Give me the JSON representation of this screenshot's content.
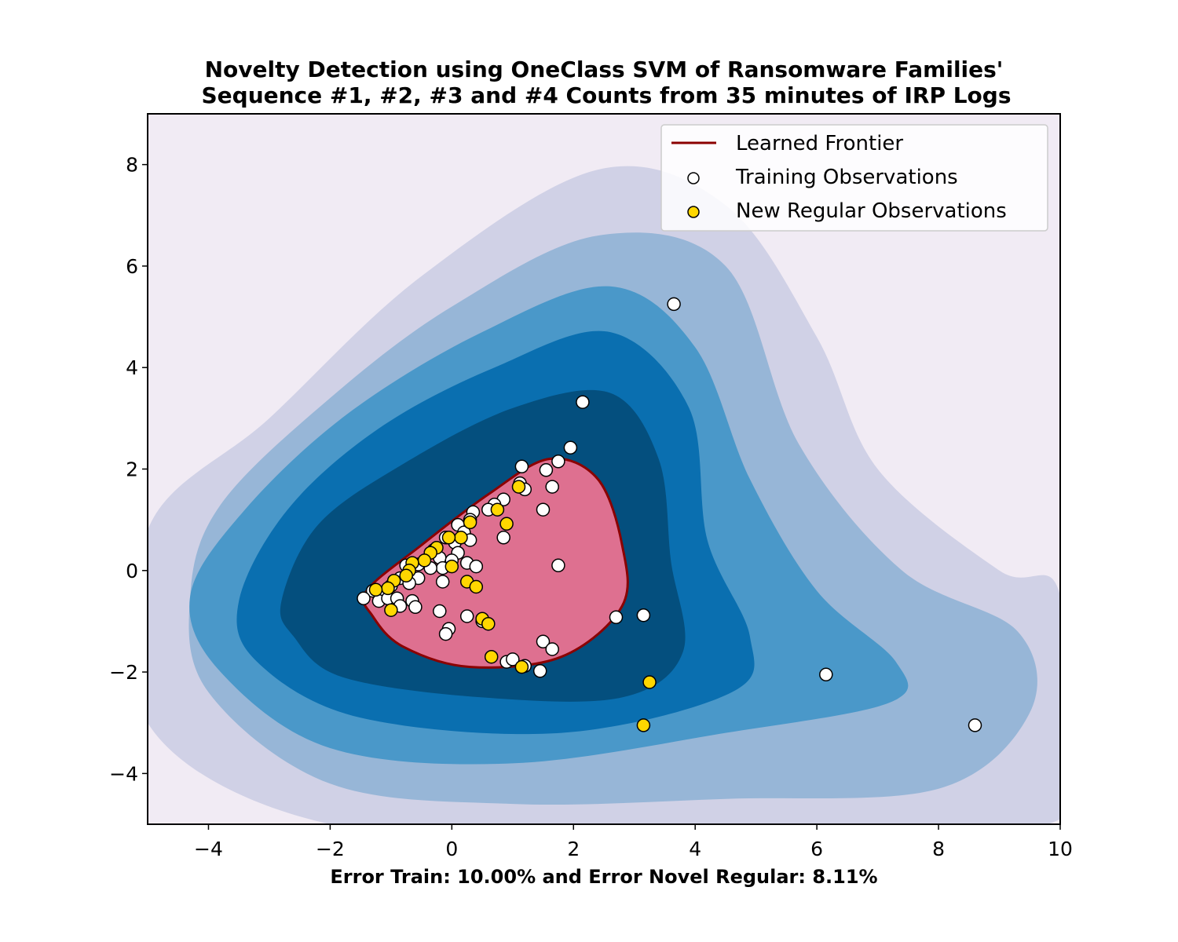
{
  "chart_data": {
    "type": "scatter",
    "title_lines": [
      "Novelty Detection using OneClass SVM of Ransomware Families'",
      "Sequence #1, #2, #3 and #4 Counts from 35 minutes of IRP Logs"
    ],
    "xlabel": "Error Train: 10.00% and Error Novel Regular: 8.11%",
    "ylabel": "",
    "xlim": [
      -5,
      10
    ],
    "ylim": [
      -5,
      9
    ],
    "xticks": [
      -4,
      -2,
      0,
      2,
      4,
      6,
      8,
      10
    ],
    "yticks": [
      -4,
      -2,
      0,
      2,
      4,
      6,
      8
    ],
    "grid": false,
    "legend": {
      "placement": "top-right",
      "entries": [
        {
          "label": "Learned Frontier",
          "kind": "line",
          "color": "#8b0000"
        },
        {
          "label": "Training Observations",
          "kind": "marker",
          "color": "#ffffff"
        },
        {
          "label": "New Regular Observations",
          "kind": "marker",
          "color": "#ffd700"
        }
      ]
    },
    "colors": {
      "background_level": "#f1ebf4",
      "contour_levels": [
        "#d0d1e6",
        "#97b6d7",
        "#4a98c9",
        "#0a6fb0",
        "#044f7e"
      ],
      "frontier_fill": "#de7090",
      "frontier_line": "#8b0000",
      "training_marker": "#ffffff",
      "novel_marker": "#ffd700"
    },
    "decision_function": {
      "center": [
        0.9,
        -0.3
      ],
      "levels": [
        {
          "label": "level-1",
          "points": [
            [
              -5,
              0.8
            ],
            [
              -3,
              3
            ],
            [
              -0.5,
              5.8
            ],
            [
              2.4,
              7.9
            ],
            [
              4.5,
              7.2
            ],
            [
              6,
              4.6
            ],
            [
              7,
              2
            ],
            [
              9,
              0
            ],
            [
              10,
              -0.5
            ],
            [
              10,
              -4.9
            ],
            [
              2.5,
              -5
            ],
            [
              -2,
              -5
            ],
            [
              -5,
              -3
            ]
          ]
        },
        {
          "label": "level-2",
          "points": [
            [
              -4.3,
              -0.5
            ],
            [
              -3.8,
              1.3
            ],
            [
              -2,
              3.4
            ],
            [
              0,
              5.2
            ],
            [
              2.4,
              6.6
            ],
            [
              4.5,
              6
            ],
            [
              5.7,
              2.5
            ],
            [
              7.4,
              0
            ],
            [
              9.3,
              -1.2
            ],
            [
              9.5,
              -2.8
            ],
            [
              8,
              -4.3
            ],
            [
              4.5,
              -4.5
            ],
            [
              1,
              -4.6
            ],
            [
              -2,
              -4.2
            ],
            [
              -4,
              -2.4
            ]
          ]
        },
        {
          "label": "level-3",
          "points": [
            [
              -4.3,
              -0.5
            ],
            [
              -3.4,
              1.2
            ],
            [
              -1.7,
              3.1
            ],
            [
              0.5,
              4.7
            ],
            [
              2.6,
              5.6
            ],
            [
              4,
              4.4
            ],
            [
              4.9,
              1.8
            ],
            [
              6,
              -0.4
            ],
            [
              7.3,
              -1.8
            ],
            [
              7.2,
              -2.6
            ],
            [
              4.5,
              -3.2
            ],
            [
              1,
              -3.8
            ],
            [
              -2,
              -3.5
            ],
            [
              -3.8,
              -2
            ]
          ]
        },
        {
          "label": "level-4",
          "points": [
            [
              -3.5,
              -0.6
            ],
            [
              -2.7,
              1.2
            ],
            [
              -1.2,
              2.8
            ],
            [
              0.7,
              4
            ],
            [
              2.6,
              4.7
            ],
            [
              3.9,
              3.2
            ],
            [
              4.2,
              0.6
            ],
            [
              4.9,
              -1.3
            ],
            [
              4.6,
              -2.4
            ],
            [
              1.8,
              -3.2
            ],
            [
              -1.5,
              -2.9
            ],
            [
              -3.2,
              -1.8
            ]
          ]
        },
        {
          "label": "level-5",
          "points": [
            [
              -2.8,
              -0.6
            ],
            [
              -2.2,
              0.9
            ],
            [
              -0.8,
              2.1
            ],
            [
              1,
              3.2
            ],
            [
              2.6,
              3.5
            ],
            [
              3.4,
              2.2
            ],
            [
              3.6,
              0.2
            ],
            [
              3.8,
              -1.6
            ],
            [
              2.8,
              -2.5
            ],
            [
              0.5,
              -2.5
            ],
            [
              -1.8,
              -2.1
            ],
            [
              -2.6,
              -1.3
            ]
          ]
        }
      ],
      "frontier": [
        [
          -1.4,
          -0.4
        ],
        [
          -0.5,
          0.5
        ],
        [
          0.6,
          1.5
        ],
        [
          1.6,
          2.2
        ],
        [
          2.4,
          1.8
        ],
        [
          2.8,
          0.5
        ],
        [
          2.8,
          -0.7
        ],
        [
          1.8,
          -1.7
        ],
        [
          0.3,
          -1.9
        ],
        [
          -0.8,
          -1.5
        ],
        [
          -1.3,
          -0.9
        ]
      ]
    },
    "series": [
      {
        "name": "Training Observations",
        "points": [
          [
            3.65,
            5.25
          ],
          [
            2.15,
            3.32
          ],
          [
            1.95,
            2.42
          ],
          [
            1.75,
            2.15
          ],
          [
            1.55,
            1.98
          ],
          [
            1.15,
            2.05
          ],
          [
            1.12,
            1.72
          ],
          [
            1.2,
            1.6
          ],
          [
            1.65,
            1.65
          ],
          [
            0.85,
            1.4
          ],
          [
            0.7,
            1.3
          ],
          [
            0.6,
            1.2
          ],
          [
            0.35,
            1.15
          ],
          [
            0.3,
            1.0
          ],
          [
            0.1,
            0.9
          ],
          [
            0.2,
            0.75
          ],
          [
            0.05,
            0.55
          ],
          [
            -0.1,
            0.65
          ],
          [
            -0.3,
            0.4
          ],
          [
            -0.2,
            0.25
          ],
          [
            0.1,
            0.35
          ],
          [
            0.0,
            0.2
          ],
          [
            0.25,
            0.15
          ],
          [
            0.4,
            0.08
          ],
          [
            -0.15,
            0.05
          ],
          [
            -0.35,
            0.05
          ],
          [
            -0.55,
            0.12
          ],
          [
            -0.75,
            0.1
          ],
          [
            -0.55,
            -0.15
          ],
          [
            -0.85,
            -0.15
          ],
          [
            -1.0,
            -0.3
          ],
          [
            -0.7,
            -0.25
          ],
          [
            -1.15,
            -0.45
          ],
          [
            -1.3,
            -0.4
          ],
          [
            -1.45,
            -0.55
          ],
          [
            -1.2,
            -0.6
          ],
          [
            -1.05,
            -0.55
          ],
          [
            -0.9,
            -0.55
          ],
          [
            -0.65,
            -0.6
          ],
          [
            -0.6,
            -0.72
          ],
          [
            -0.85,
            -0.7
          ],
          [
            -0.15,
            -0.22
          ],
          [
            -0.2,
            -0.8
          ],
          [
            0.3,
            0.6
          ],
          [
            0.85,
            0.65
          ],
          [
            1.5,
            1.2
          ],
          [
            1.75,
            0.1
          ],
          [
            0.25,
            -0.9
          ],
          [
            -0.05,
            -1.15
          ],
          [
            -0.1,
            -1.25
          ],
          [
            0.5,
            -1.0
          ],
          [
            0.9,
            -1.8
          ],
          [
            1.0,
            -1.75
          ],
          [
            1.2,
            -1.88
          ],
          [
            1.5,
            -1.4
          ],
          [
            1.65,
            -1.55
          ],
          [
            1.45,
            -1.98
          ],
          [
            2.7,
            -0.92
          ],
          [
            3.15,
            -0.88
          ],
          [
            6.15,
            -2.05
          ],
          [
            8.6,
            -3.05
          ]
        ]
      },
      {
        "name": "New Regular Observations",
        "points": [
          [
            1.1,
            1.65
          ],
          [
            0.75,
            1.2
          ],
          [
            0.3,
            0.95
          ],
          [
            0.9,
            0.92
          ],
          [
            0.15,
            0.65
          ],
          [
            -0.05,
            0.65
          ],
          [
            -0.25,
            0.45
          ],
          [
            -0.35,
            0.35
          ],
          [
            -0.45,
            0.2
          ],
          [
            -0.65,
            0.15
          ],
          [
            -0.7,
            0.0
          ],
          [
            -0.75,
            -0.1
          ],
          [
            -0.95,
            -0.2
          ],
          [
            -1.05,
            -0.35
          ],
          [
            -1.25,
            -0.38
          ],
          [
            -1.0,
            -0.78
          ],
          [
            0.0,
            0.08
          ],
          [
            0.25,
            -0.22
          ],
          [
            0.4,
            -0.32
          ],
          [
            0.5,
            -0.95
          ],
          [
            0.6,
            -1.05
          ],
          [
            0.65,
            -1.7
          ],
          [
            1.15,
            -1.9
          ],
          [
            3.25,
            -2.2
          ],
          [
            3.15,
            -3.05
          ]
        ]
      }
    ]
  }
}
